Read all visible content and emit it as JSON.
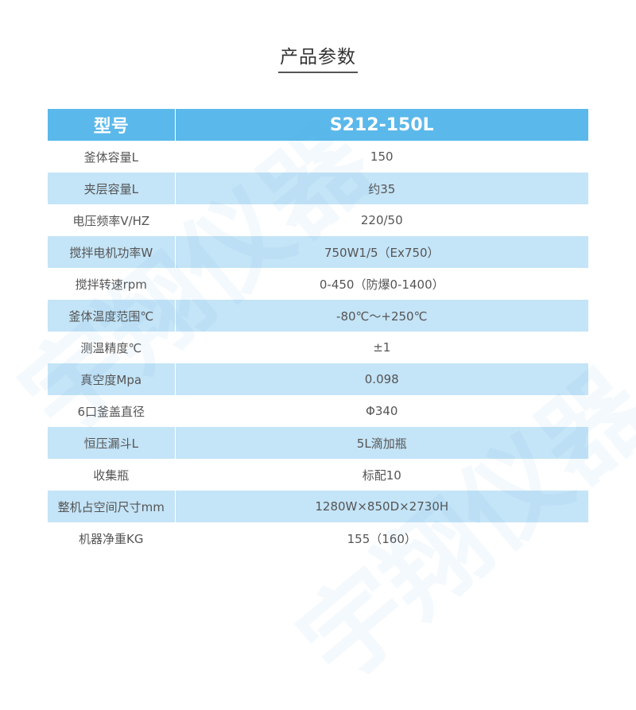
{
  "title": "产品参数",
  "watermark": "宇翔仪器",
  "colors": {
    "header": "#5bb8ea",
    "alt_row": "#c4e4f7"
  },
  "table": {
    "header": {
      "key": "型号",
      "value": "S212-150L"
    },
    "rows": [
      {
        "key": "釜体容量L",
        "value": "150"
      },
      {
        "key": "夹层容量L",
        "value": "约35"
      },
      {
        "key": "电压频率V/HZ",
        "value": "220/50"
      },
      {
        "key": "搅拌电机功率W",
        "value": "750W1/5（Ex750）"
      },
      {
        "key": "搅拌转速rpm",
        "value": "0-450（防爆0-1400）"
      },
      {
        "key": "釜体温度范围℃",
        "value": "-80℃～+250℃"
      },
      {
        "key": "测温精度℃",
        "value": "±1"
      },
      {
        "key": "真空度Mpa",
        "value": "0.098"
      },
      {
        "key": "6口釜盖直径",
        "value": "Φ340"
      },
      {
        "key": "恒压漏斗L",
        "value": "5L滴加瓶"
      },
      {
        "key": "收集瓶",
        "value": "标配10"
      },
      {
        "key": "整机占空间尺寸mm",
        "value": "1280W×850D×2730H"
      },
      {
        "key": "机器净重KG",
        "value": "155（160）"
      }
    ]
  }
}
